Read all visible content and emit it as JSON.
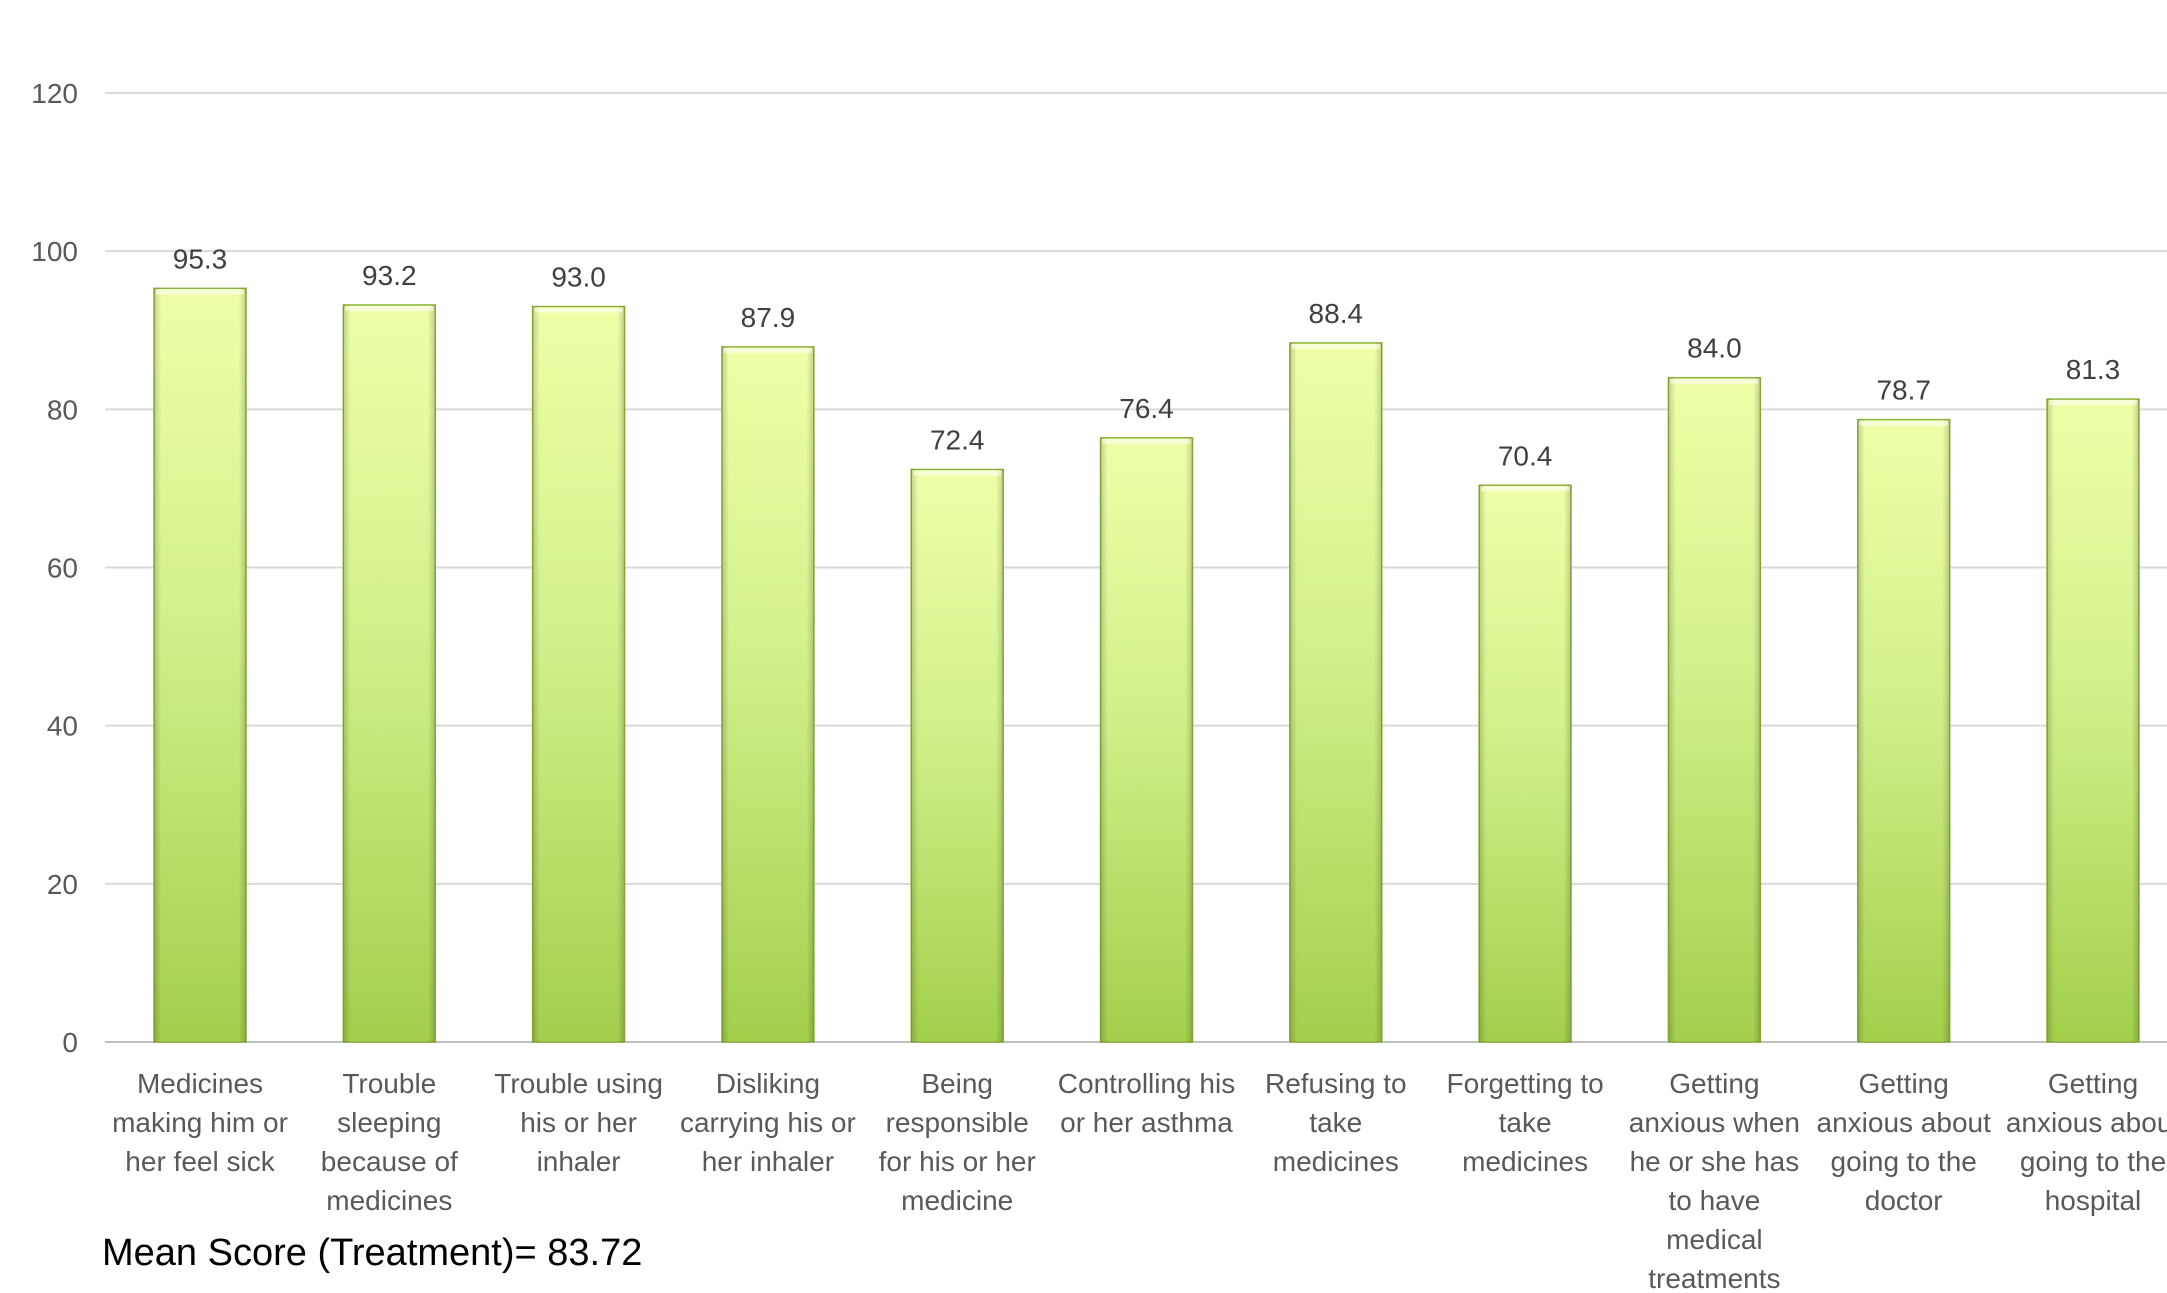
{
  "note": "Mean Score (Treatment)= 83.72",
  "colors": {
    "bar_top": "#eeffa8",
    "bar_mid": "#d2f08a",
    "bar_bottom": "#a3cf4c",
    "bar_edge": "#8eb43c",
    "grid": "#d9d9d9",
    "axis": "#bfbfbf"
  },
  "chart_data": {
    "type": "bar",
    "title": "",
    "xlabel": "",
    "ylabel": "",
    "ylim": [
      0,
      120
    ],
    "yticks": [
      0,
      20,
      40,
      60,
      80,
      100,
      120
    ],
    "grid": true,
    "categories": [
      "Medicines making him or her feel sick",
      "Trouble sleeping because of medicines",
      "Trouble using his or her inhaler",
      "Disliking carrying his or her inhaler",
      "Being responsible for his or her medicine",
      "Controlling his or her asthma",
      "Refusing to take medicines",
      "Forgetting to take medicines",
      "Getting anxious when he or she has to have medical treatments",
      "Getting anxious about going to the doctor",
      "Getting anxious about going to the hospital"
    ],
    "category_lines": [
      [
        "Medicines",
        "making him or",
        "her feel sick"
      ],
      [
        "Trouble",
        "sleeping",
        "because of",
        "medicines"
      ],
      [
        "Trouble using",
        "his or her",
        "inhaler"
      ],
      [
        "Disliking",
        "carrying his or",
        "her inhaler"
      ],
      [
        "Being",
        "responsible",
        "for his or her",
        "medicine"
      ],
      [
        "Controlling his",
        "or her asthma"
      ],
      [
        "Refusing to",
        "take",
        "medicines"
      ],
      [
        "Forgetting to",
        "take",
        "medicines"
      ],
      [
        "Getting",
        "anxious when",
        "he or she has",
        "to have",
        "medical",
        "treatments"
      ],
      [
        "Getting",
        "anxious about",
        "going to the",
        "doctor"
      ],
      [
        "Getting",
        "anxious about",
        "going to the",
        "hospital"
      ]
    ],
    "values": [
      95.3,
      93.2,
      93.0,
      87.9,
      72.4,
      76.4,
      88.4,
      70.4,
      84.0,
      78.7,
      81.3
    ],
    "value_labels": [
      "95.3",
      "93.2",
      "93.0",
      "87.9",
      "72.4",
      "76.4",
      "88.4",
      "70.4",
      "84.0",
      "78.7",
      "81.3"
    ]
  }
}
